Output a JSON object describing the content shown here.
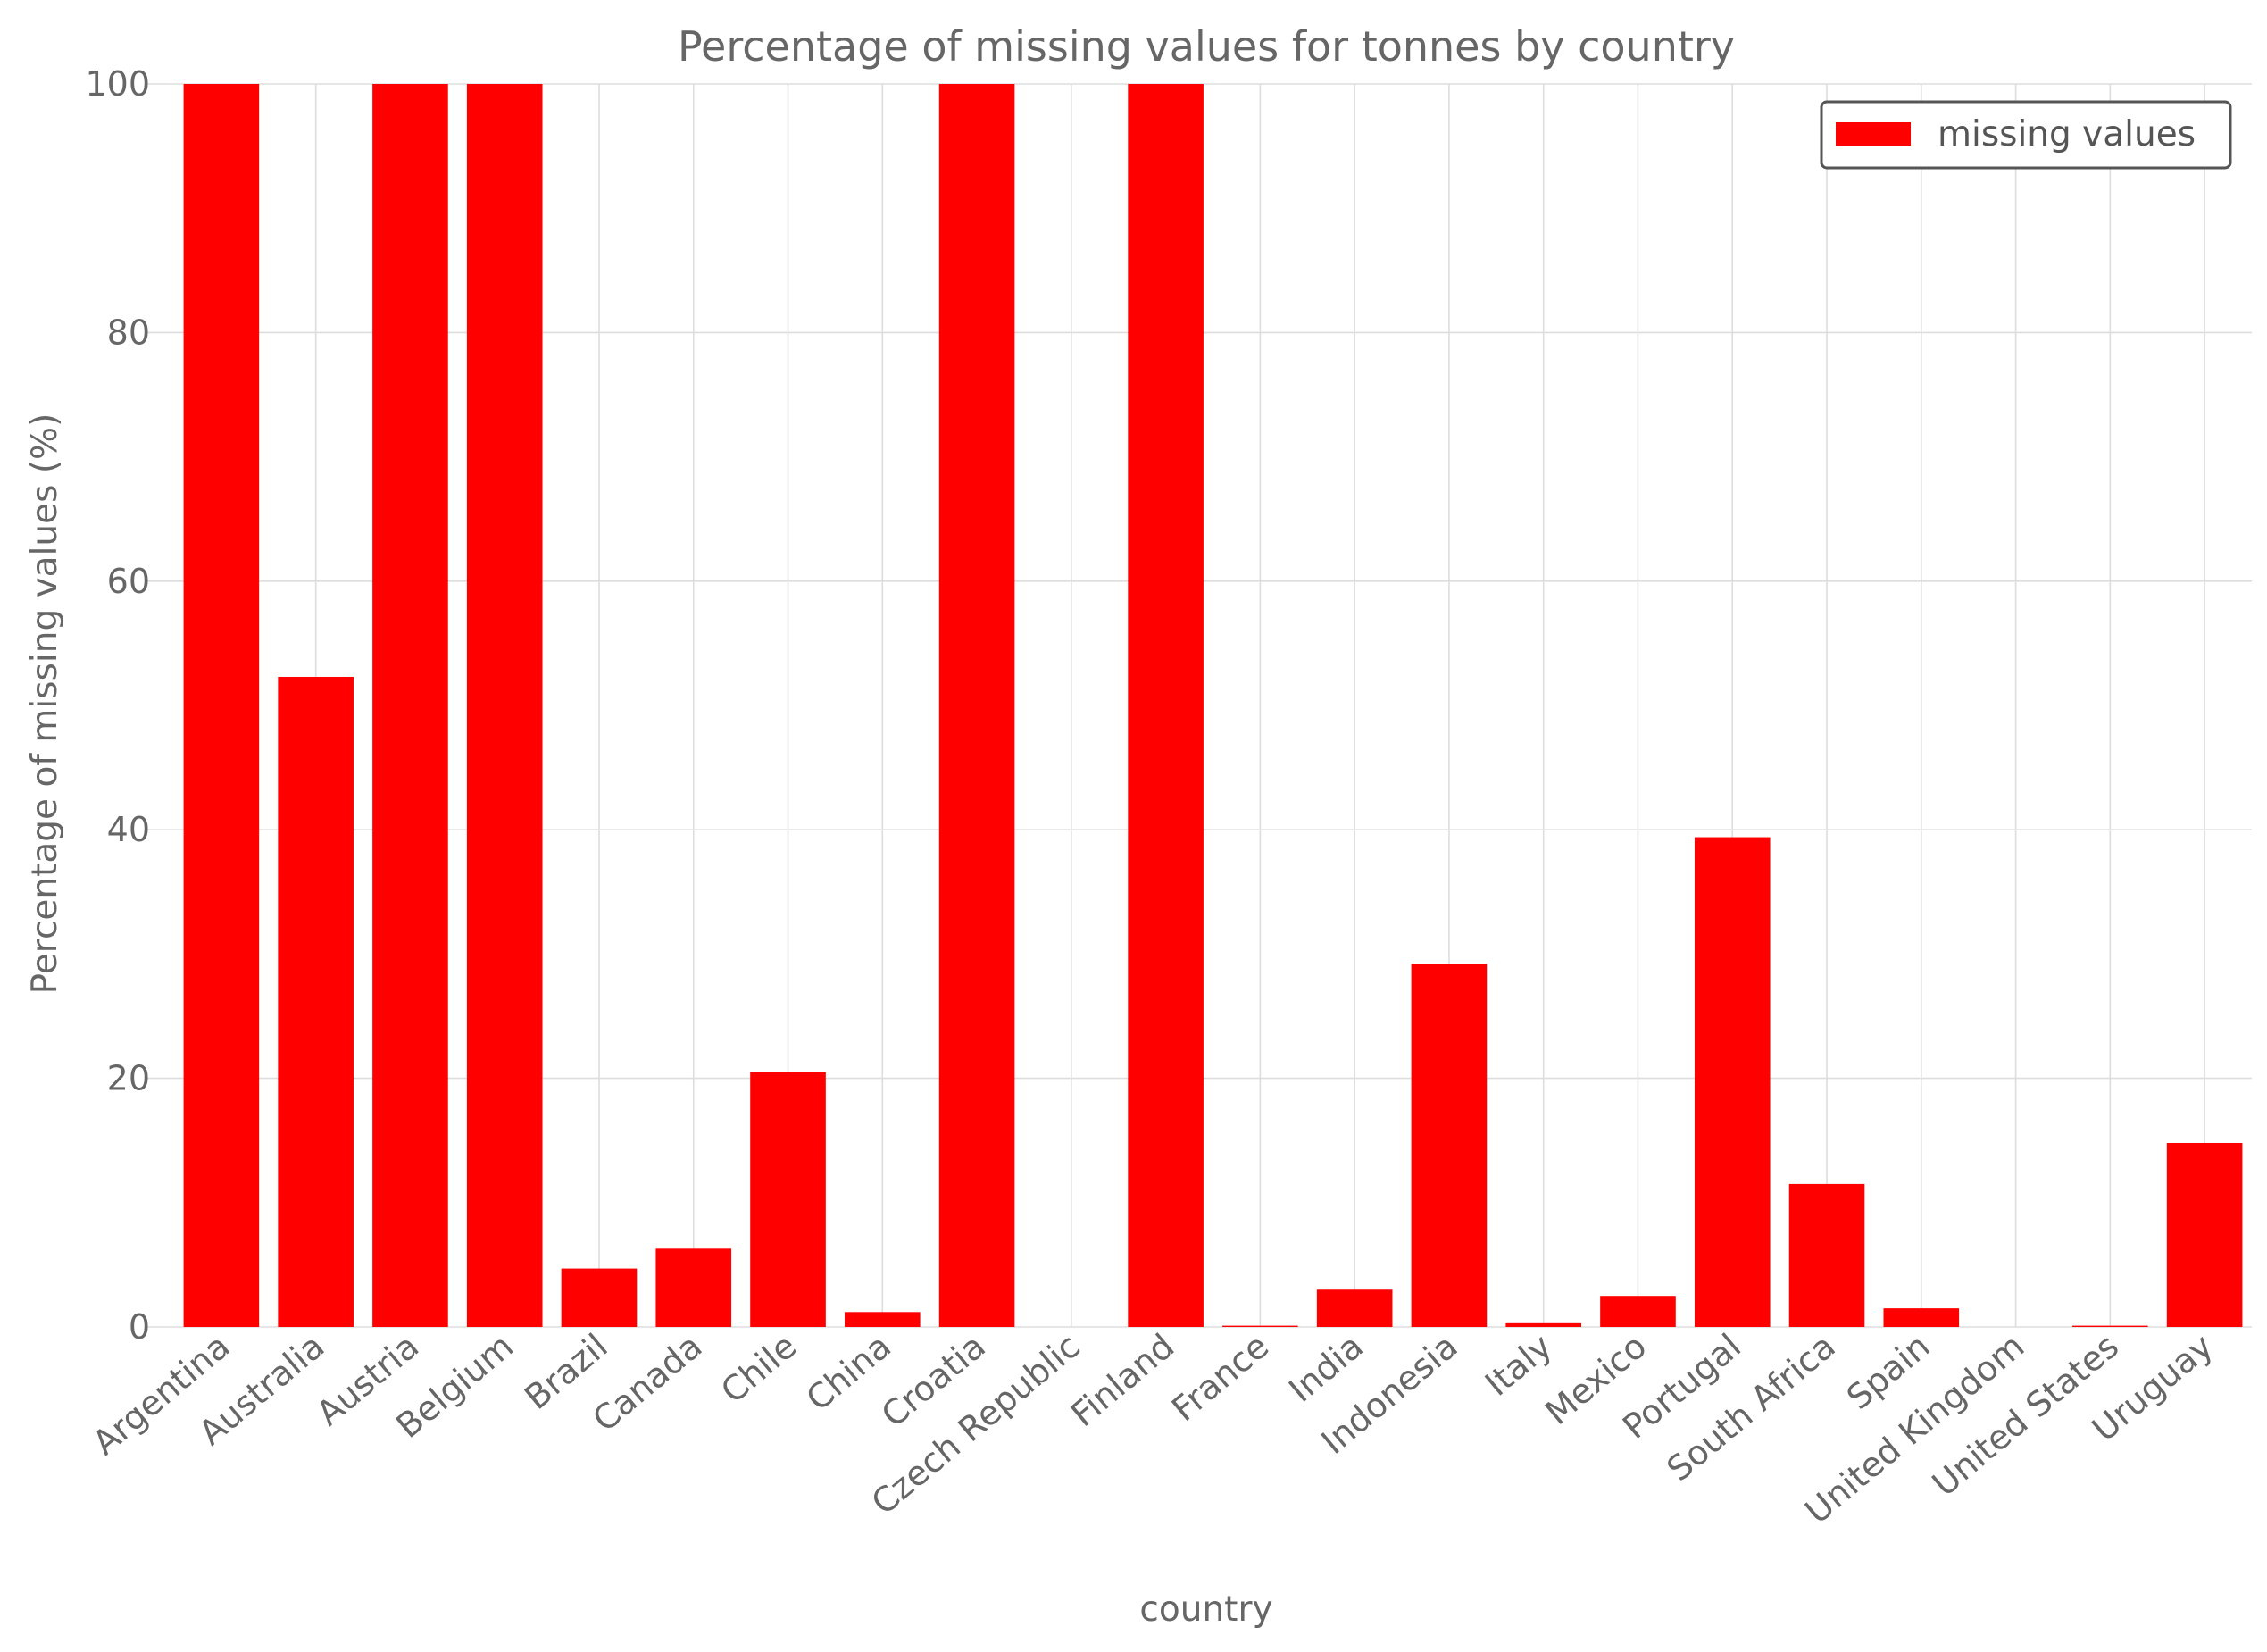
{
  "chart_data": {
    "type": "bar",
    "title": "Percentage of missing values for tonnes by country",
    "xlabel": "country",
    "ylabel": "Percentage of missing values (%)",
    "ylim": [
      0,
      100
    ],
    "yticks": [
      0,
      20,
      40,
      60,
      80,
      100
    ],
    "grid": true,
    "legend_position": "top-right",
    "categories": [
      "Argentina",
      "Australia",
      "Austria",
      "Belgium",
      "Brazil",
      "Canada",
      "Chile",
      "China",
      "Croatia",
      "Czech Republic",
      "Finland",
      "France",
      "India",
      "Indonesia",
      "Italy",
      "Mexico",
      "Portugal",
      "South Africa",
      "Spain",
      "United Kingdom",
      "United States",
      "Uruguay"
    ],
    "series": [
      {
        "name": "missing values",
        "color": "#ff0000",
        "values": [
          100,
          52.3,
          100,
          100,
          4.7,
          6.3,
          20.5,
          1.2,
          100,
          0,
          100,
          0.1,
          3.0,
          29.2,
          0.3,
          2.5,
          39.4,
          11.5,
          1.5,
          0,
          0.1,
          14.8
        ]
      }
    ]
  }
}
